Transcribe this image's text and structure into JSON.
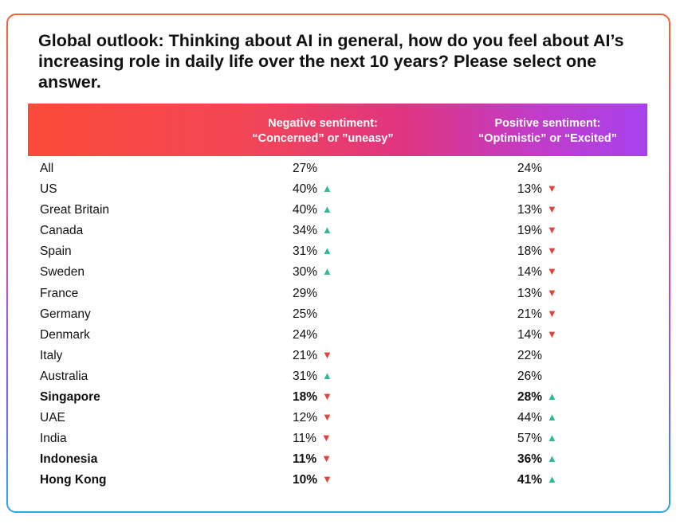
{
  "title": "Global outlook: Thinking about AI in general, how do you feel about AI’s increasing role in daily life over the next 10 years? Please select one answer.",
  "columns": {
    "negative": {
      "line1": "Negative sentiment:",
      "line2": "“Concerned” or ”uneasy”"
    },
    "positive": {
      "line1": "Positive sentiment:",
      "line2": "“Optimistic” or “Excited”"
    }
  },
  "colors": {
    "up": "#2fb89a",
    "down": "#e2433a"
  },
  "rows": [
    {
      "country": "All",
      "negative": "27%",
      "negative_trend": "none",
      "positive": "24%",
      "positive_trend": "none",
      "bold": false
    },
    {
      "country": "US",
      "negative": "40%",
      "negative_trend": "up",
      "positive": "13%",
      "positive_trend": "down",
      "bold": false
    },
    {
      "country": "Great Britain",
      "negative": "40%",
      "negative_trend": "up",
      "positive": "13%",
      "positive_trend": "down",
      "bold": false
    },
    {
      "country": "Canada",
      "negative": "34%",
      "negative_trend": "up",
      "positive": "19%",
      "positive_trend": "down",
      "bold": false
    },
    {
      "country": "Spain",
      "negative": "31%",
      "negative_trend": "up",
      "positive": "18%",
      "positive_trend": "down",
      "bold": false
    },
    {
      "country": "Sweden",
      "negative": "30%",
      "negative_trend": "up",
      "positive": "14%",
      "positive_trend": "down",
      "bold": false
    },
    {
      "country": "France",
      "negative": "29%",
      "negative_trend": "none",
      "positive": "13%",
      "positive_trend": "down",
      "bold": false
    },
    {
      "country": "Germany",
      "negative": "25%",
      "negative_trend": "none",
      "positive": "21%",
      "positive_trend": "down",
      "bold": false
    },
    {
      "country": "Denmark",
      "negative": "24%",
      "negative_trend": "none",
      "positive": "14%",
      "positive_trend": "down",
      "bold": false
    },
    {
      "country": "Italy",
      "negative": "21%",
      "negative_trend": "down",
      "positive": "22%",
      "positive_trend": "none",
      "bold": false
    },
    {
      "country": "Australia",
      "negative": "31%",
      "negative_trend": "up",
      "positive": "26%",
      "positive_trend": "none",
      "bold": false
    },
    {
      "country": "Singapore",
      "negative": "18%",
      "negative_trend": "down",
      "positive": "28%",
      "positive_trend": "up",
      "bold": true
    },
    {
      "country": "UAE",
      "negative": "12%",
      "negative_trend": "down",
      "positive": "44%",
      "positive_trend": "up",
      "bold": false
    },
    {
      "country": "India",
      "negative": "11%",
      "negative_trend": "down",
      "positive": "57%",
      "positive_trend": "up",
      "bold": false
    },
    {
      "country": "Indonesia",
      "negative": "11%",
      "negative_trend": "down",
      "positive": "36%",
      "positive_trend": "up",
      "bold": true
    },
    {
      "country": "Hong Kong",
      "negative": "10%",
      "negative_trend": "down",
      "positive": "41%",
      "positive_trend": "up",
      "bold": true
    }
  ]
}
